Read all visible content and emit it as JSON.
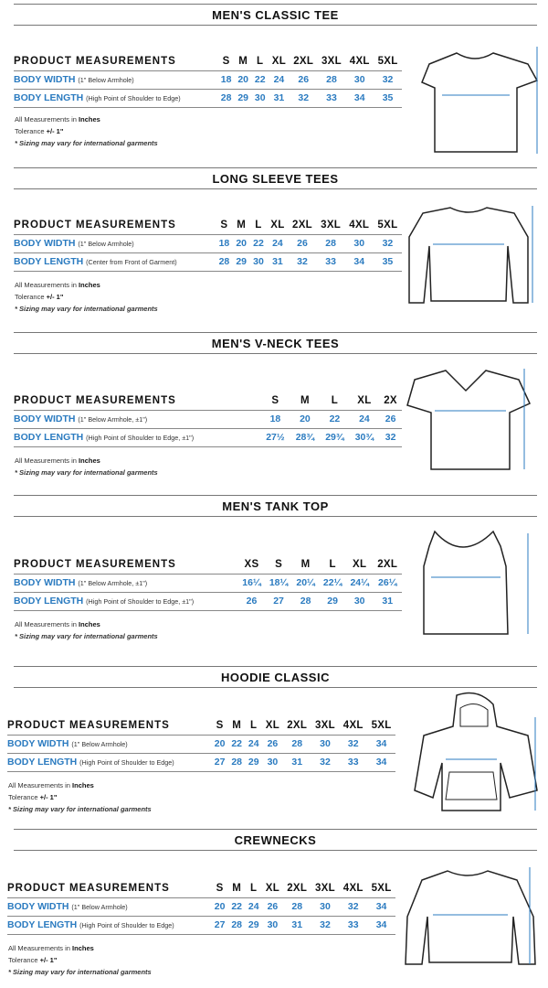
{
  "sections": [
    {
      "title": "MEN'S CLASSIC TEE",
      "garment_icon": "t-shirt-icon",
      "header": "PRODUCT MEASUREMENTS",
      "sizes": [
        "S",
        "M",
        "L",
        "XL",
        "2XL",
        "3XL",
        "4XL",
        "5XL"
      ],
      "rows": [
        {
          "label": "BODY WIDTH",
          "note": "(1\" Below Armhole)",
          "values": [
            "18",
            "20",
            "22",
            "24",
            "26",
            "28",
            "30",
            "32"
          ]
        },
        {
          "label": "BODY LENGTH",
          "note": "(High Point of Shoulder to Edge)",
          "values": [
            "28",
            "29",
            "30",
            "31",
            "32",
            "33",
            "34",
            "35"
          ]
        }
      ],
      "units_prefix": "All Measurements in ",
      "units": "Inches",
      "tolerance_prefix": "Tolerance ",
      "tolerance": "+/- 1\"",
      "disclaimer": "* Sizing may vary for international garments"
    },
    {
      "title": "LONG SLEEVE TEES",
      "garment_icon": "long-sleeve-shirt-icon",
      "header": "PRODUCT MEASUREMENTS",
      "sizes": [
        "S",
        "M",
        "L",
        "XL",
        "2XL",
        "3XL",
        "4XL",
        "5XL"
      ],
      "rows": [
        {
          "label": "BODY WIDTH",
          "note": "(1\" Below Armhole)",
          "values": [
            "18",
            "20",
            "22",
            "24",
            "26",
            "28",
            "30",
            "32"
          ]
        },
        {
          "label": "BODY LENGTH",
          "note": "(Center from Front of Garment)",
          "values": [
            "28",
            "29",
            "30",
            "31",
            "32",
            "33",
            "34",
            "35"
          ]
        }
      ],
      "units_prefix": "All Measurements in ",
      "units": "Inches",
      "tolerance_prefix": "Tolerance ",
      "tolerance": "+/- 1\"",
      "disclaimer": "* Sizing may vary for international garments"
    },
    {
      "title": "MEN'S V-NECK TEES",
      "garment_icon": "v-neck-shirt-icon",
      "header": "PRODUCT MEASUREMENTS",
      "sizes": [
        "S",
        "M",
        "L",
        "XL",
        "2X"
      ],
      "rows": [
        {
          "label": "BODY WIDTH",
          "note": "(1\" Below Armhole, ±1\")",
          "values": [
            "18",
            "20",
            "22",
            "24",
            "26"
          ]
        },
        {
          "label": "BODY LENGTH",
          "note": "(High Point of Shoulder to Edge, ±1\")",
          "values": [
            "27½",
            "28¾",
            "29¾",
            "30¾",
            "32"
          ]
        }
      ],
      "units_prefix": "All Measurements in ",
      "units": "Inches",
      "disclaimer": "* Sizing may vary for international garments"
    },
    {
      "title": "MEN'S TANK TOP",
      "garment_icon": "tank-top-icon",
      "header": "PRODUCT MEASUREMENTS",
      "sizes": [
        "XS",
        "S",
        "M",
        "L",
        "XL",
        "2XL"
      ],
      "rows": [
        {
          "label": "BODY WIDTH",
          "note": "(1\" Below Armhole, ±1\")",
          "values": [
            "16¼",
            "18¼",
            "20¼",
            "22¼",
            "24¼",
            "26¼"
          ]
        },
        {
          "label": "BODY LENGTH",
          "note": "(High Point of Shoulder to Edge, ±1\")",
          "values": [
            "26",
            "27",
            "28",
            "29",
            "30",
            "31"
          ]
        }
      ],
      "units_prefix": "All Measurements in ",
      "units": "Inches",
      "disclaimer": "* Sizing may vary for international garments"
    },
    {
      "title": "HOODIE CLASSIC",
      "garment_icon": "hoodie-icon",
      "header": "PRODUCT MEASUREMENTS",
      "sizes": [
        "S",
        "M",
        "L",
        "XL",
        "2XL",
        "3XL",
        "4XL",
        "5XL"
      ],
      "rows": [
        {
          "label": "BODY WIDTH",
          "note": "(1\" Below Armhole)",
          "values": [
            "20",
            "22",
            "24",
            "26",
            "28",
            "30",
            "32",
            "34"
          ]
        },
        {
          "label": "BODY LENGTH",
          "note": "(High Point of Shoulder to Edge)",
          "values": [
            "27",
            "28",
            "29",
            "30",
            "31",
            "32",
            "33",
            "34"
          ]
        }
      ],
      "units_prefix": "All Measurements in ",
      "units": "Inches",
      "tolerance_prefix": "Tolerance ",
      "tolerance": "+/- 1\"",
      "disclaimer": "* Sizing may vary for international garments"
    },
    {
      "title": "CREWNECKS",
      "garment_icon": "crewneck-sweatshirt-icon",
      "header": "PRODUCT MEASUREMENTS",
      "sizes": [
        "S",
        "M",
        "L",
        "XL",
        "2XL",
        "3XL",
        "4XL",
        "5XL"
      ],
      "rows": [
        {
          "label": "BODY WIDTH",
          "note": "(1\" Below Armhole)",
          "values": [
            "20",
            "22",
            "24",
            "26",
            "28",
            "30",
            "32",
            "34"
          ]
        },
        {
          "label": "BODY LENGTH",
          "note": "(High Point of Shoulder to Edge)",
          "values": [
            "27",
            "28",
            "29",
            "30",
            "31",
            "32",
            "33",
            "34"
          ]
        }
      ],
      "units_prefix": "All Measurements in ",
      "units": "Inches",
      "tolerance_prefix": "Tolerance ",
      "tolerance": "+/- 1\"",
      "disclaimer": "* Sizing may vary for international garments"
    }
  ],
  "colors": {
    "accent": "#2b7bc0",
    "rule": "#777777"
  }
}
